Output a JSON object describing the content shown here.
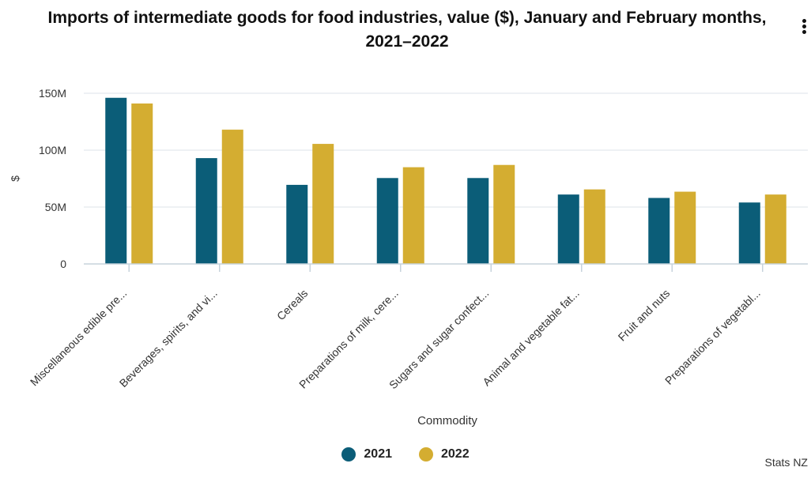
{
  "title": "Imports of intermediate goods for food industries, value ($), January and February months, 2021–2022",
  "source": "Stats NZ",
  "menu_icon": "more-vertical-icon",
  "colors": {
    "s2021": "#0b5d78",
    "s2022": "#d4ad31",
    "grid": "#dde3e8",
    "axis": "#c7d3dc",
    "text": "#333333"
  },
  "chart_data": {
    "type": "bar",
    "title": "Imports of intermediate goods for food industries, value ($), January and February months, 2021–2022",
    "xlabel": "Commodity",
    "ylabel": "$",
    "ylim": [
      0,
      150000000
    ],
    "yticks": [
      0,
      50000000,
      100000000,
      150000000
    ],
    "ytick_labels": [
      "0",
      "50M",
      "100M",
      "150M"
    ],
    "categories": [
      "Miscellaneous edible pre...",
      "Beverages, spirits, and vi...",
      "Cereals",
      "Preparations of milk, cere...",
      "Sugars and sugar confect...",
      "Animal and vegetable fat...",
      "Fruit and nuts",
      "Preparations of vegetabl..."
    ],
    "series": [
      {
        "name": "2021",
        "values": [
          146000000,
          93000000,
          69500000,
          75500000,
          75500000,
          61000000,
          58000000,
          54000000
        ]
      },
      {
        "name": "2022",
        "values": [
          141000000,
          118000000,
          105500000,
          85000000,
          87000000,
          65500000,
          63500000,
          61000000
        ]
      }
    ],
    "grid": true,
    "legend": "bottom-center"
  }
}
